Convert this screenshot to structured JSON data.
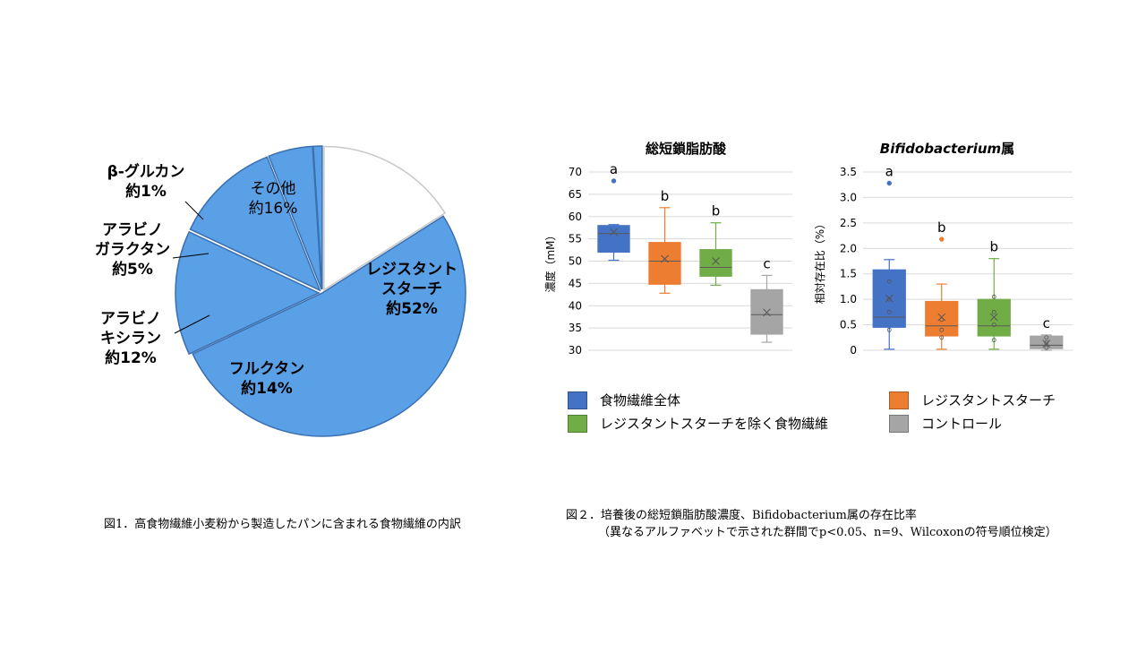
{
  "chart_data": [
    {
      "type": "pie",
      "slices": [
        {
          "label": "レジスタントスターチ",
          "label_lines": [
            "レジスタント",
            "スターチ",
            "約52%"
          ],
          "value": 52,
          "color": "#5aa0e6"
        },
        {
          "label": "フルクタン",
          "label_lines": [
            "フルクタン",
            "約14%"
          ],
          "value": 14,
          "color": "#5aa0e6"
        },
        {
          "label": "アラビノキシラン",
          "label_lines": [
            "アラビノ",
            "キシラン",
            "約12%"
          ],
          "value": 12,
          "color": "#5aa0e6"
        },
        {
          "label": "アラビノガラクタン",
          "label_lines": [
            "アラビノ",
            "ガラクタン",
            "約5%"
          ],
          "value": 5,
          "color": "#5aa0e6"
        },
        {
          "label": "β-グルカン",
          "label_lines": [
            "β-グルカン",
            "約1%"
          ],
          "value": 1,
          "color": "#5aa0e6"
        },
        {
          "label": "その他",
          "label_lines": [
            "その他",
            "約16%"
          ],
          "value": 16,
          "color": "#ffffff"
        }
      ]
    },
    {
      "type": "box",
      "title": "総短鎖脂肪酸",
      "ylabel": "濃度（mM）",
      "ylim": [
        30,
        70
      ],
      "yticks": [
        "30",
        "35",
        "40",
        "45",
        "50",
        "55",
        "60",
        "65",
        "70"
      ],
      "grid": true,
      "series": [
        {
          "name": "食物繊維全体",
          "color": "#4472c4",
          "min": 50.2,
          "q1": 52.0,
          "median": 56.2,
          "q3": 58.0,
          "max": 58.2,
          "mean": 56.5,
          "outliers": [
            68.0
          ],
          "letter": "a"
        },
        {
          "name": "レジスタントスターチ",
          "color": "#ed7d31",
          "min": 42.8,
          "q1": 44.8,
          "median": 50.0,
          "q3": 54.2,
          "max": 62.0,
          "mean": 50.5,
          "outliers": [],
          "letter": "b"
        },
        {
          "name": "レジスタントスターチを除く食物繊維",
          "color": "#70ad47",
          "min": 44.6,
          "q1": 46.6,
          "median": 48.6,
          "q3": 52.6,
          "max": 58.6,
          "mean": 50.0,
          "outliers": [],
          "letter": "b"
        },
        {
          "name": "コントロール",
          "color": "#a5a5a5",
          "min": 31.8,
          "q1": 33.6,
          "median": 38.0,
          "q3": 43.6,
          "max": 46.8,
          "mean": 38.5,
          "outliers": [],
          "letter": "c"
        }
      ]
    },
    {
      "type": "box",
      "title": "Bifidobacterium属",
      "title_italic": "Bifidobacterium",
      "title_rest": "属",
      "ylabel": "相対存在比（%）",
      "ylim": [
        0,
        3.5
      ],
      "yticks": [
        "0",
        "0.5",
        "1.0",
        "1.5",
        "2.0",
        "2.5",
        "3.0",
        "3.5"
      ],
      "grid": true,
      "series": [
        {
          "name": "食物繊維全体",
          "color": "#4472c4",
          "min": 0.02,
          "q1": 0.45,
          "median": 0.65,
          "q3": 1.58,
          "max": 1.78,
          "mean": 1.02,
          "points": [
            0.4,
            0.75,
            1.0,
            1.35
          ],
          "outliers": [
            3.28
          ],
          "letter": "a"
        },
        {
          "name": "レジスタントスターチ",
          "color": "#ed7d31",
          "min": 0.02,
          "q1": 0.28,
          "median": 0.48,
          "q3": 0.96,
          "max": 1.3,
          "mean": 0.65,
          "points": [
            0.25,
            0.4,
            0.6
          ],
          "outliers": [
            2.18
          ],
          "letter": "b"
        },
        {
          "name": "レジスタントスターチを除く食物繊維",
          "color": "#70ad47",
          "min": 0.02,
          "q1": 0.28,
          "median": 0.48,
          "q3": 1.0,
          "max": 1.8,
          "mean": 0.65,
          "points": [
            0.2,
            0.5,
            0.75,
            1.05
          ],
          "outliers": [],
          "letter": "b"
        },
        {
          "name": "コントロール",
          "color": "#a5a5a5",
          "min": 0.0,
          "q1": 0.03,
          "median": 0.1,
          "q3": 0.28,
          "max": 0.3,
          "mean": 0.13,
          "points": [
            0.05,
            0.15,
            0.25
          ],
          "outliers": [],
          "letter": "c"
        }
      ]
    }
  ],
  "legend": [
    {
      "label": "食物繊維全体",
      "color": "#4472c4"
    },
    {
      "label": "レジスタントスターチ",
      "color": "#ed7d31"
    },
    {
      "label": "レジスタントスターチを除く食物繊維",
      "color": "#70ad47"
    },
    {
      "label": "コントロール",
      "color": "#a5a5a5"
    }
  ],
  "captions": {
    "fig1": "図1．高食物繊維小麦粉から製造したパンに含まれる食物繊維の内訳",
    "fig2_line1": "図２．培養後の総短鎖脂肪酸濃度、Bifidobacterium属の存在比率",
    "fig2_line2": "（異なるアルファベットで示された群間でp<0.05、n=9、Wilcoxonの符号順位検定）"
  }
}
